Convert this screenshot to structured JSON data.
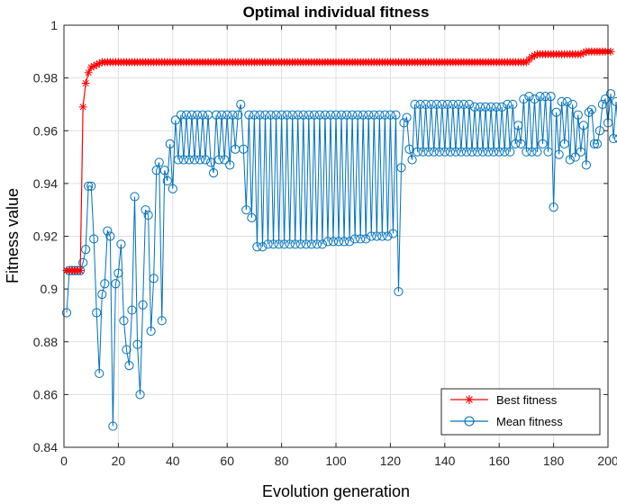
{
  "chart_data": {
    "type": "line",
    "title": "Optimal individual fitness",
    "xlabel": "Evolution generation",
    "ylabel": "Fitness value",
    "xlim": [
      0,
      200
    ],
    "ylim": [
      0.84,
      1.0
    ],
    "xticks": [
      0,
      20,
      40,
      60,
      80,
      100,
      120,
      140,
      160,
      180,
      200
    ],
    "yticks": [
      0.84,
      0.86,
      0.88,
      0.9,
      0.92,
      0.94,
      0.96,
      0.98,
      1.0
    ],
    "xtick_labels": [
      "0",
      "20",
      "40",
      "60",
      "80",
      "100",
      "120",
      "140",
      "160",
      "180",
      "200"
    ],
    "ytick_labels": [
      "0.84",
      "0.86",
      "0.88",
      "0.9",
      "0.92",
      "0.94",
      "0.96",
      "0.98",
      "1"
    ],
    "grid": true,
    "legend_position": "bottom-right",
    "series": [
      {
        "name": "Best fitness",
        "color": "#ff0000",
        "marker": "asterisk",
        "keypoints": [
          [
            1,
            0.907
          ],
          [
            6,
            0.907
          ],
          [
            7,
            0.969
          ],
          [
            8,
            0.978
          ],
          [
            9,
            0.982
          ],
          [
            10,
            0.984
          ],
          [
            12,
            0.985
          ],
          [
            14,
            0.986
          ],
          [
            170,
            0.986
          ],
          [
            172,
            0.988
          ],
          [
            174,
            0.989
          ],
          [
            190,
            0.989
          ],
          [
            192,
            0.99
          ],
          [
            201,
            0.99
          ]
        ]
      },
      {
        "name": "Mean fitness",
        "color": "#0072bd",
        "marker": "circle",
        "values": [
          0.891,
          0.907,
          0.907,
          0.907,
          0.907,
          0.907,
          0.91,
          0.915,
          0.939,
          0.939,
          0.919,
          0.891,
          0.868,
          0.898,
          0.902,
          0.922,
          0.92,
          0.848,
          0.902,
          0.906,
          0.917,
          0.888,
          0.877,
          0.871,
          0.892,
          0.935,
          0.879,
          0.86,
          0.894,
          0.93,
          0.928,
          0.884,
          0.904,
          0.945,
          0.948,
          0.888,
          0.945,
          0.941,
          0.955,
          0.938,
          0.964,
          0.949,
          0.966,
          0.949,
          0.966,
          0.949,
          0.966,
          0.949,
          0.966,
          0.949,
          0.966,
          0.949,
          0.966,
          0.948,
          0.944,
          0.966,
          0.949,
          0.966,
          0.949,
          0.966,
          0.947,
          0.966,
          0.953,
          0.966,
          0.97,
          0.953,
          0.93,
          0.966,
          0.927,
          0.966,
          0.916,
          0.966,
          0.916,
          0.966,
          0.917,
          0.966,
          0.917,
          0.966,
          0.917,
          0.966,
          0.917,
          0.966,
          0.917,
          0.966,
          0.917,
          0.966,
          0.917,
          0.966,
          0.917,
          0.966,
          0.917,
          0.966,
          0.917,
          0.966,
          0.917,
          0.966,
          0.918,
          0.966,
          0.918,
          0.966,
          0.918,
          0.966,
          0.918,
          0.966,
          0.918,
          0.966,
          0.919,
          0.966,
          0.919,
          0.966,
          0.919,
          0.966,
          0.92,
          0.966,
          0.92,
          0.966,
          0.92,
          0.966,
          0.92,
          0.966,
          0.921,
          0.966,
          0.899,
          0.946,
          0.963,
          0.965,
          0.953,
          0.949,
          0.97,
          0.952,
          0.97,
          0.952,
          0.97,
          0.952,
          0.97,
          0.952,
          0.97,
          0.952,
          0.97,
          0.952,
          0.97,
          0.952,
          0.97,
          0.952,
          0.97,
          0.952,
          0.97,
          0.952,
          0.97,
          0.952,
          0.969,
          0.952,
          0.969,
          0.952,
          0.969,
          0.952,
          0.969,
          0.952,
          0.969,
          0.952,
          0.969,
          0.952,
          0.97,
          0.952,
          0.97,
          0.955,
          0.962,
          0.955,
          0.972,
          0.952,
          0.973,
          0.952,
          0.972,
          0.952,
          0.973,
          0.955,
          0.973,
          0.952,
          0.973,
          0.931,
          0.967,
          0.951,
          0.971,
          0.955,
          0.971,
          0.949,
          0.97,
          0.95,
          0.966,
          0.952,
          0.962,
          0.947,
          0.967,
          0.968,
          0.955,
          0.955,
          0.96,
          0.97,
          0.972,
          0.963,
          0.974,
          0.957,
          0.971,
          0.957,
          0.95
        ]
      }
    ]
  }
}
